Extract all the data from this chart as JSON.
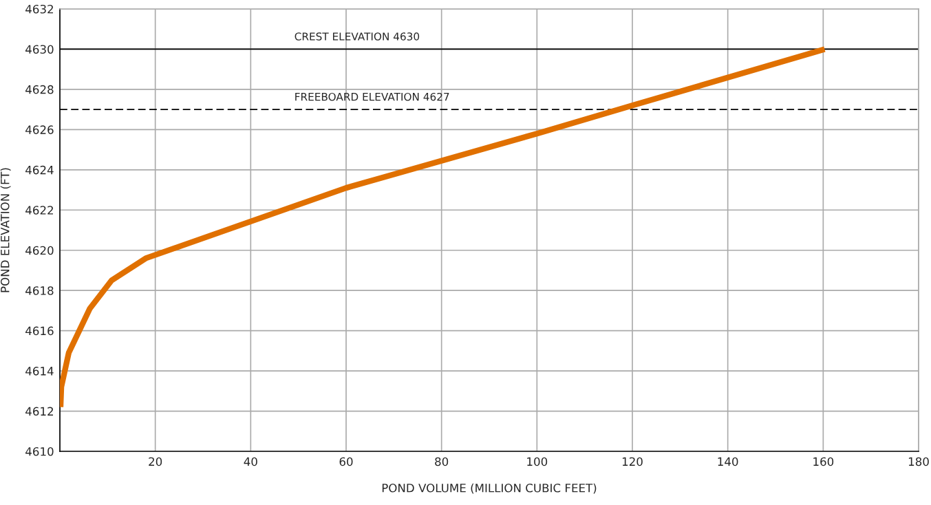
{
  "chart_data": {
    "type": "line",
    "xlabel": "POND VOLUME (MILLION CUBIC FEET)",
    "ylabel": "POND ELEVATION (FT)",
    "x": [
      0.14,
      0.3,
      1.86,
      6.28,
      10.85,
      18.0,
      60.0,
      100.0,
      120.0,
      160.3
    ],
    "series": [
      {
        "color": "#e07000",
        "values": [
          4612.2,
          4613.2,
          4614.9,
          4617.1,
          4618.5,
          4619.6,
          4623.1,
          4625.8,
          4627.2,
          4630.0
        ]
      }
    ],
    "xlim": [
      0,
      180
    ],
    "xticks": [
      {
        "value": 0,
        "label": null
      },
      20,
      40,
      60,
      80,
      100,
      120,
      140,
      160,
      180
    ],
    "ylim": [
      4610,
      4632
    ],
    "yticks": [
      4610,
      4612,
      4614,
      4616,
      4618,
      4620,
      4622,
      4624,
      4626,
      4628,
      4630,
      4632
    ],
    "grid": true,
    "marker": "none",
    "line_style": "solid",
    "ref_lines": [
      {
        "axis": "y",
        "value": 4630,
        "label": "CREST ELEVATION 4630",
        "color": "#000000",
        "line_style": "solid"
      },
      {
        "axis": "y",
        "value": 4627,
        "label": "FREEBOARD ELEVATION 4627",
        "color": "#000000",
        "line_style": "dashed"
      }
    ]
  }
}
